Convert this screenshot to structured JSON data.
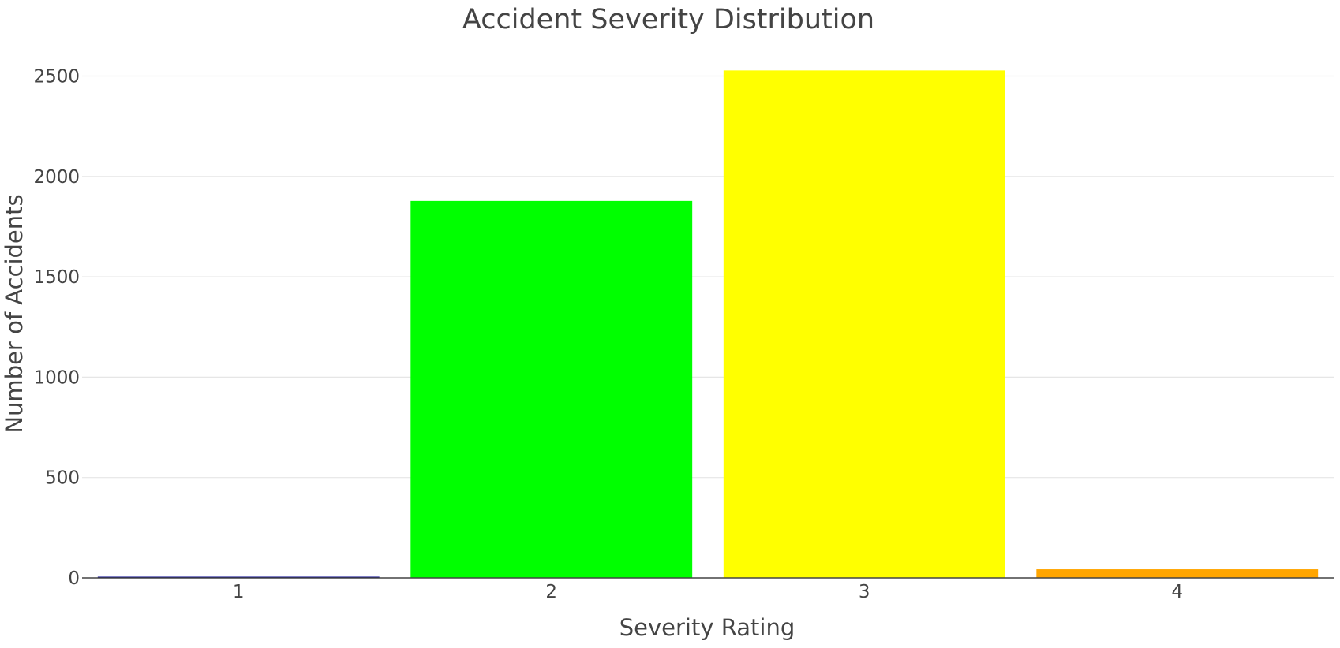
{
  "chart_data": {
    "type": "bar",
    "title": "Accident Severity Distribution",
    "xlabel": "Severity Rating",
    "ylabel": "Number of Accidents",
    "categories": [
      "1",
      "2",
      "3",
      "4"
    ],
    "values": [
      5,
      1878,
      2528,
      43
    ],
    "bar_colors": [
      "#00008b",
      "#00ff00",
      "#ffff00",
      "#ffa500"
    ],
    "ylim": [
      0,
      2620
    ],
    "yticks": [
      0,
      500,
      1000,
      1500,
      2000,
      2500
    ],
    "ytick_labels": [
      "0",
      "500",
      "1000",
      "1500",
      "2000",
      "2500"
    ],
    "grid": true,
    "legend": "none"
  }
}
